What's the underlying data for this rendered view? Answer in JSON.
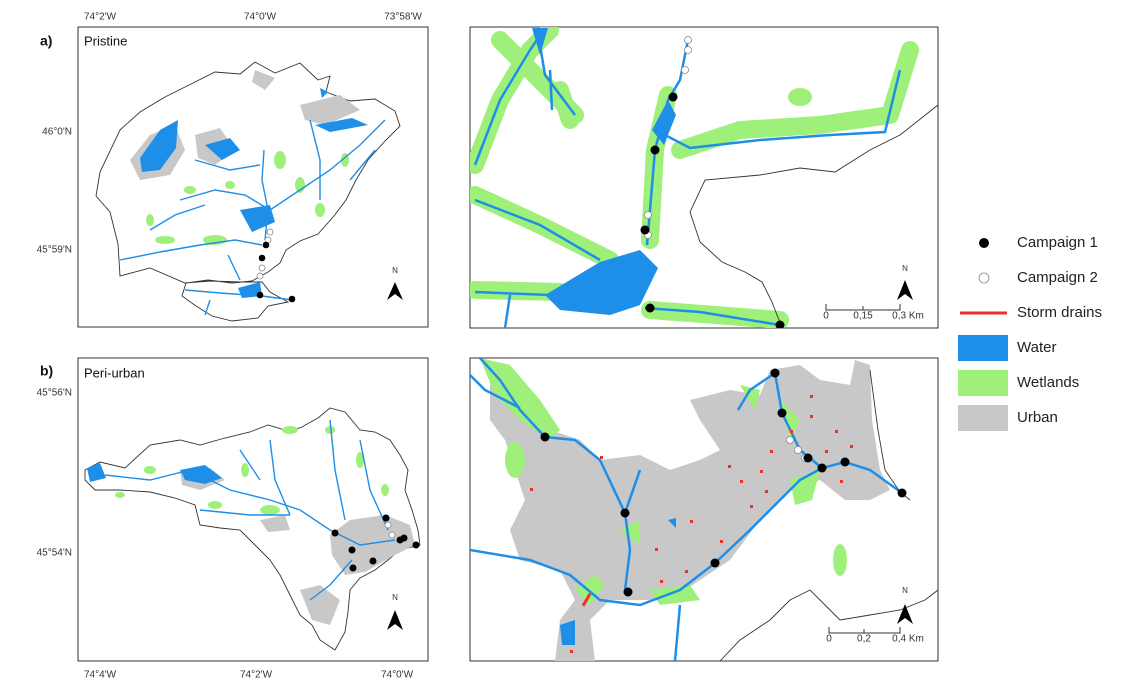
{
  "panels": [
    {
      "label": "a)",
      "name": "Pristine",
      "top_ticks": [
        "74°2'W",
        "74°0'W",
        "73°58'W"
      ],
      "left_ticks": [
        "46°0'N",
        "45°59'N"
      ],
      "north": "N",
      "inset_north": "N",
      "scale_labels": [
        "0",
        "0,15",
        "0,3 Km"
      ]
    },
    {
      "label": "b)",
      "name": "Peri-urban",
      "left_ticks": [
        "45°56'N",
        "45°54'N"
      ],
      "bottom_ticks": [
        "74°4'W",
        "74°2'W",
        "74°0'W"
      ],
      "north": "N",
      "inset_north": "N",
      "scale_labels": [
        "0",
        "0,2",
        "0,4 Km"
      ]
    }
  ],
  "legend": [
    "Campaign 1",
    "Campaign 2",
    "Storm drains",
    "Water",
    "Wetlands",
    "Urban"
  ]
}
